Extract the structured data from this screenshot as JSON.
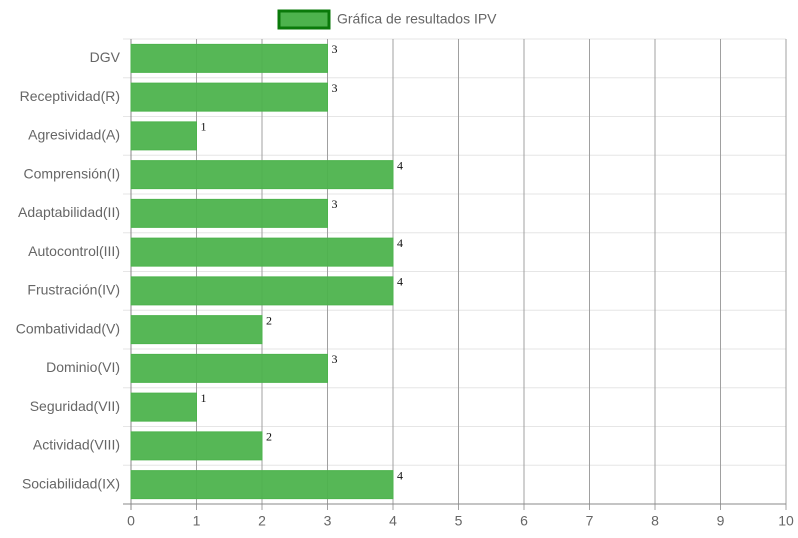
{
  "chart_data": {
    "type": "bar",
    "horizontal": true,
    "series": [
      {
        "name": "Gráfica de resultados IPV",
        "color": "#4db34d",
        "border_color": "#0a7a0a",
        "values": [
          3,
          3,
          1,
          4,
          3,
          4,
          4,
          2,
          3,
          1,
          2,
          4
        ]
      }
    ],
    "categories": [
      "DGV",
      "Receptividad(R)",
      "Agresividad(A)",
      "Comprensión(I)",
      "Adaptabilidad(II)",
      "Autocontrol(III)",
      "Frustración(IV)",
      "Combatividad(V)",
      "Dominio(VI)",
      "Seguridad(VII)",
      "Actividad(VIII)",
      "Sociabilidad(IX)"
    ],
    "xlim": [
      0,
      10
    ],
    "xticks": [
      0,
      1,
      2,
      3,
      4,
      5,
      6,
      7,
      8,
      9,
      10
    ],
    "grid": true,
    "legend": "top"
  }
}
